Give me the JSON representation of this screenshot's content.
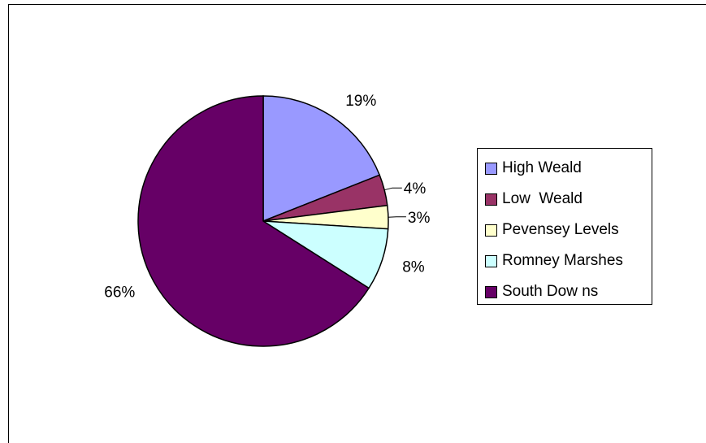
{
  "chart_data": {
    "type": "pie",
    "title": "",
    "start_angle_deg": 0,
    "direction": "clockwise",
    "slices": [
      {
        "name": "High Weald",
        "value": 19,
        "label": "19%",
        "color": "#9999ff"
      },
      {
        "name": "Low  Weald",
        "value": 4,
        "label": "4%",
        "color": "#993366"
      },
      {
        "name": "Pevensey Levels",
        "value": 3,
        "label": "3%",
        "color": "#ffffcc"
      },
      {
        "name": "Romney Marshes",
        "value": 8,
        "label": "8%",
        "color": "#ccffff"
      },
      {
        "name": "South Dow ns",
        "value": 66,
        "label": "66%",
        "color": "#660066"
      }
    ],
    "legend_position": "right"
  }
}
